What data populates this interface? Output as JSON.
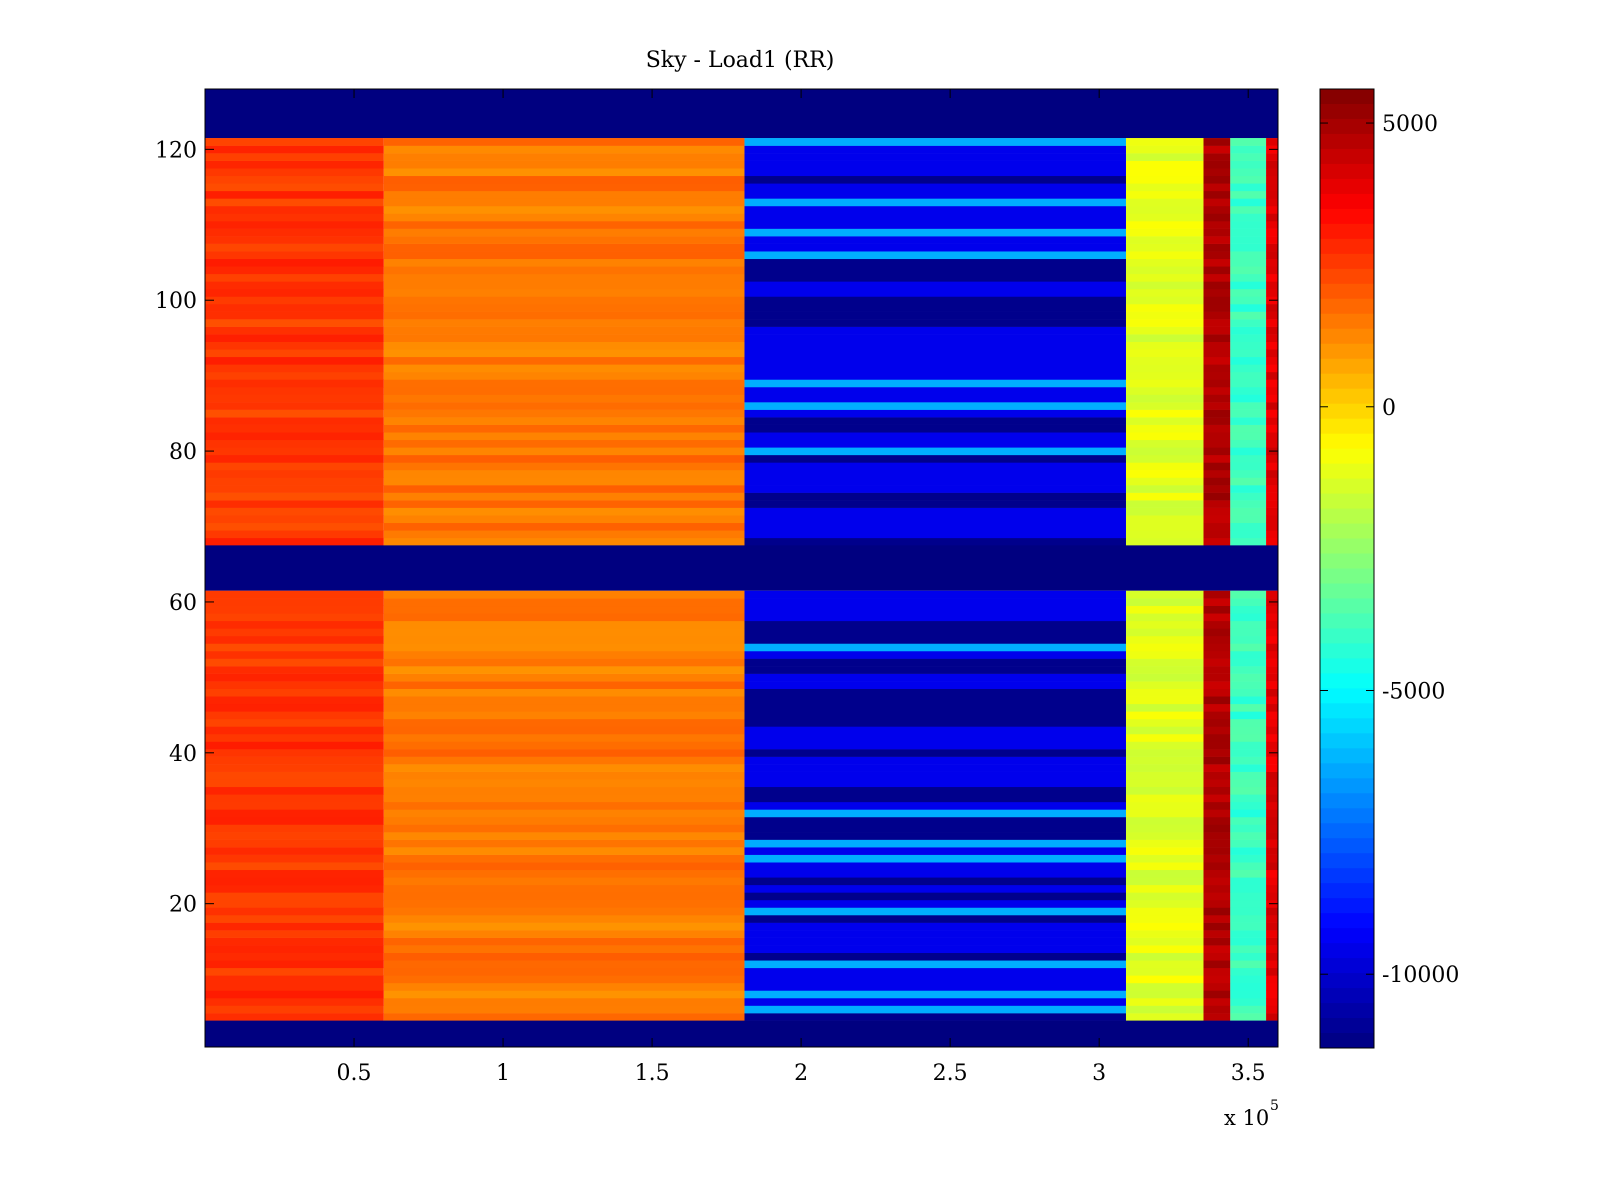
{
  "chart_data": {
    "type": "heatmap",
    "title": "Sky - Load1 (RR)",
    "xlabel": "",
    "ylabel": "",
    "x_multiplier_label": "x 10",
    "x_multiplier_exponent": "5",
    "xlim": [
      0,
      3.6
    ],
    "ylim": [
      1,
      128
    ],
    "xticks": [
      {
        "value": 0.5,
        "label": "0.5"
      },
      {
        "value": 1,
        "label": "1"
      },
      {
        "value": 1.5,
        "label": "1.5"
      },
      {
        "value": 2,
        "label": "2"
      },
      {
        "value": 2.5,
        "label": "2.5"
      },
      {
        "value": 3,
        "label": "3"
      },
      {
        "value": 3.5,
        "label": "3.5"
      }
    ],
    "yticks": [
      {
        "value": 20,
        "label": "20"
      },
      {
        "value": 40,
        "label": "40"
      },
      {
        "value": 60,
        "label": "60"
      },
      {
        "value": 80,
        "label": "80"
      },
      {
        "value": 100,
        "label": "100"
      },
      {
        "value": 120,
        "label": "120"
      }
    ],
    "colorbar": {
      "colormap": "jet",
      "range": [
        -11300,
        5600
      ],
      "ticks": [
        {
          "value": 5000,
          "label": "5000"
        },
        {
          "value": 0,
          "label": "0"
        },
        {
          "value": -5000,
          "label": "-5000"
        },
        {
          "value": -10000,
          "label": "-10000"
        }
      ]
    },
    "masked_rows": [
      {
        "from": 1,
        "to": 4,
        "value": -11300
      },
      {
        "from": 62,
        "to": 67,
        "value": -11300
      },
      {
        "from": 122,
        "to": 128,
        "value": -11300
      }
    ],
    "regions": [
      {
        "x_from": 0.0,
        "x_to": 0.6,
        "value": 2600,
        "label": "sky minus load, early segment (orange-red)"
      },
      {
        "x_from": 0.6,
        "x_to": 1.81,
        "value": 1500,
        "label": "orange segment"
      },
      {
        "x_from": 1.81,
        "x_to": 3.09,
        "value": -9500,
        "label": "blue segment"
      },
      {
        "x_from": 3.09,
        "x_to": 3.35,
        "value": -1200,
        "label": "yellow segment"
      },
      {
        "x_from": 3.35,
        "x_to": 3.44,
        "value": 4800,
        "label": "dark red band"
      },
      {
        "x_from": 3.44,
        "x_to": 3.56,
        "value": -4000,
        "label": "cyan band"
      },
      {
        "x_from": 3.56,
        "x_to": 3.6,
        "value": 4000,
        "label": "red edge"
      }
    ],
    "colors": {
      "jet_min": "#00008f",
      "jet_max": "#800000",
      "masked": "#00008f"
    }
  }
}
